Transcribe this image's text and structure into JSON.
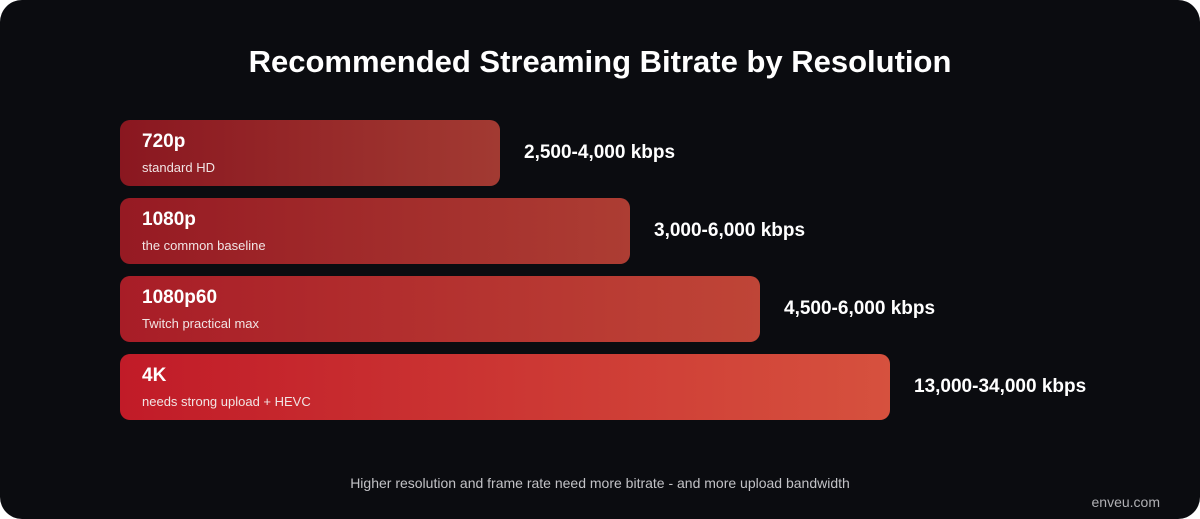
{
  "header": {
    "title": "Recommended Streaming Bitrate by Resolution"
  },
  "rows": [
    {
      "label": "720p",
      "note": "standard HD",
      "bitrate": "2,500-4,000 kbps"
    },
    {
      "label": "1080p",
      "note": "the common baseline",
      "bitrate": "3,000-6,000 kbps"
    },
    {
      "label": "1080p60",
      "note": "Twitch practical max",
      "bitrate": "4,500-6,000 kbps"
    },
    {
      "label": "4K",
      "note": "needs strong upload + HEVC",
      "bitrate": "13,000-34,000 kbps"
    }
  ],
  "footer": {
    "caption": "Higher resolution and frame rate need more bitrate - and more upload bandwidth",
    "brand": "enveu.com"
  }
}
